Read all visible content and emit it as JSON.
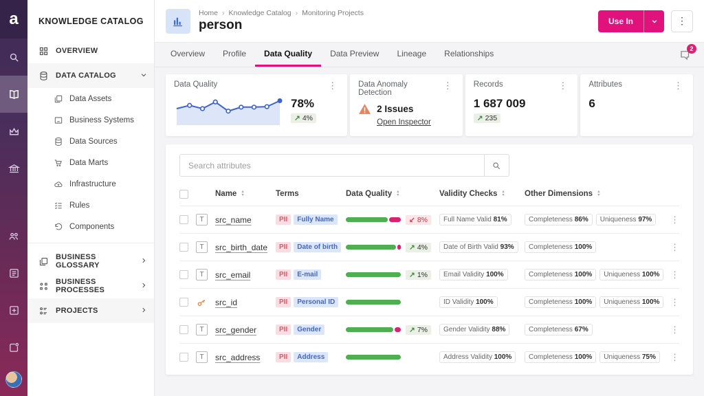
{
  "colors": {
    "accent_pink": "#e0127c",
    "bar_green": "#4caf50",
    "bar_pink": "#d6246e",
    "spark_blue": "#3e63c9",
    "warning_orange": "#e5855f"
  },
  "rail": {
    "logo": "a"
  },
  "sidebar": {
    "title": "KNOWLEDGE CATALOG",
    "overview": "OVERVIEW",
    "data_catalog": "DATA CATALOG",
    "catalog_items": [
      "Data Assets",
      "Business Systems",
      "Data Sources",
      "Data Marts",
      "Infrastructure",
      "Rules",
      "Components"
    ],
    "business_glossary": "BUSINESS GLOSSARY",
    "business_processes": "BUSINESS PROCESSES",
    "projects": "PROJECTS"
  },
  "header": {
    "breadcrumb": [
      "Home",
      "Knowledge Catalog",
      "Monitoring Projects"
    ],
    "title": "person",
    "use_in_label": "Use In"
  },
  "tabs": [
    "Overview",
    "Profile",
    "Data Quality",
    "Data Preview",
    "Lineage",
    "Relationships"
  ],
  "active_tab": "Data Quality",
  "notifications": {
    "count": "2"
  },
  "cards": {
    "data_quality": {
      "title": "Data Quality",
      "value": "78%",
      "trend_value": "4%",
      "trend_dir": "up",
      "sparkline": [
        50,
        63,
        50,
        77,
        40,
        56,
        56,
        58,
        82
      ]
    },
    "anomaly": {
      "title": "Data Anomaly Detection",
      "issues": "2 Issues",
      "link": "Open Inspector"
    },
    "records": {
      "title": "Records",
      "value": "1 687 009",
      "trend_value": "235",
      "trend_dir": "up"
    },
    "attributes": {
      "title": "Attributes",
      "value": "6"
    }
  },
  "table": {
    "search_placeholder": "Search attributes",
    "columns": {
      "name": "Name",
      "terms": "Terms",
      "data_quality": "Data Quality",
      "validity": "Validity Checks",
      "dimensions": "Other Dimensions"
    },
    "rows": [
      {
        "name": "src_name",
        "icon": "text",
        "pii": "PII",
        "term": "Fully Name",
        "bar_green": 78,
        "trend": {
          "dir": "down",
          "value": "8%"
        },
        "validity": {
          "label": "Full Name Valid",
          "value": "81%"
        },
        "dims": [
          {
            "label": "Completeness",
            "value": "86%"
          },
          {
            "label": "Uniqueness",
            "value": "97%"
          }
        ]
      },
      {
        "name": "src_birth_date",
        "icon": "text",
        "pii": "PII",
        "term": "Date of birth",
        "bar_green": 93,
        "trend": {
          "dir": "up",
          "value": "4%"
        },
        "validity": {
          "label": "Date of Birth Valid",
          "value": "93%"
        },
        "dims": [
          {
            "label": "Completeness",
            "value": "100%"
          }
        ]
      },
      {
        "name": "src_email",
        "icon": "text",
        "pii": "PII",
        "term": "E-mail",
        "bar_green": 100,
        "trend": {
          "dir": "up",
          "value": "1%"
        },
        "validity": {
          "label": "Email Validity",
          "value": "100%"
        },
        "dims": [
          {
            "label": "Completeness",
            "value": "100%"
          },
          {
            "label": "Uniqueness",
            "value": "100%"
          }
        ]
      },
      {
        "name": "src_id",
        "icon": "key",
        "pii": "PII",
        "term": "Personal ID",
        "bar_green": 100,
        "trend": null,
        "validity": {
          "label": "ID Validity",
          "value": "100%"
        },
        "dims": [
          {
            "label": "Completeness",
            "value": "100%"
          },
          {
            "label": "Uniqueness",
            "value": "100%"
          }
        ]
      },
      {
        "name": "src_gender",
        "icon": "text",
        "pii": "PII",
        "term": "Gender",
        "bar_green": 88,
        "trend": {
          "dir": "up",
          "value": "7%"
        },
        "validity": {
          "label": "Gender Validity",
          "value": "88%"
        },
        "dims": [
          {
            "label": "Completeness",
            "value": "67%"
          }
        ]
      },
      {
        "name": "src_address",
        "icon": "text",
        "pii": "PII",
        "term": "Address",
        "bar_green": 100,
        "trend": null,
        "validity": {
          "label": "Address Validity",
          "value": "100%"
        },
        "dims": [
          {
            "label": "Completeness",
            "value": "100%"
          },
          {
            "label": "Uniqueness",
            "value": "75%"
          }
        ]
      }
    ]
  }
}
